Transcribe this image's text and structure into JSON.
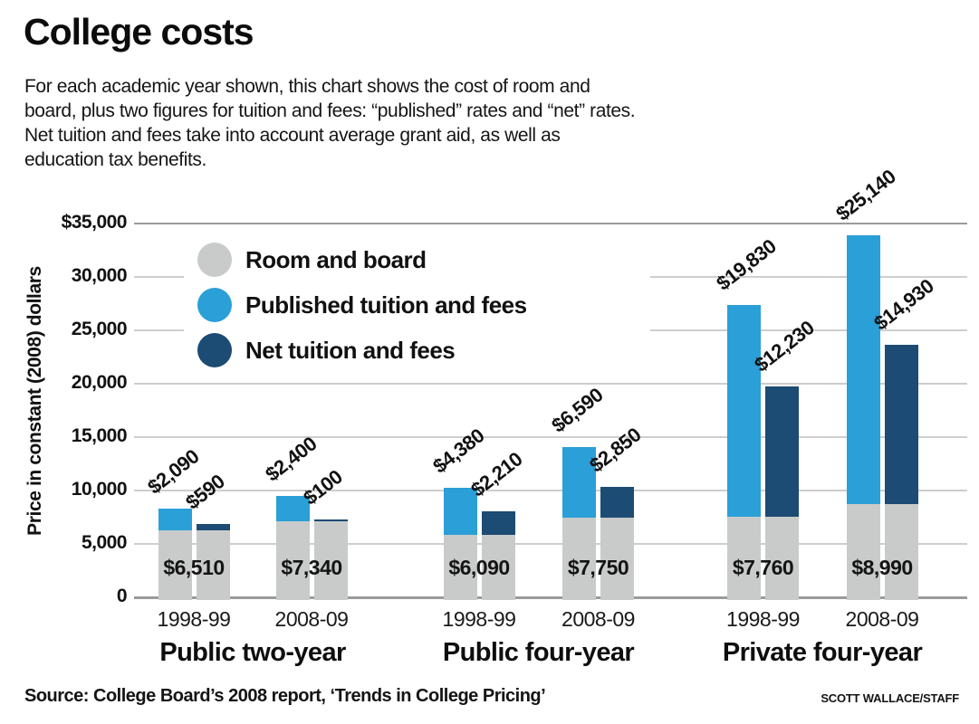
{
  "title": "College costs",
  "description": {
    "lines": [
      "For each academic year shown, this chart shows the cost of room and",
      "board, plus two figures for tuition and fees: “published” rates and “net” rates.",
      "Net tuition and fees take into account average grant aid, as well as",
      "education tax benefits."
    ]
  },
  "source": "Source: College Board’s 2008 report, ‘Trends in College Pricing’",
  "credit": "SCOTT WALLACE/STAFF",
  "colors": {
    "room_board": "#c9cbca",
    "published": "#2b9fd7",
    "net": "#1c4b73",
    "grid_light": "#cecece",
    "grid_dark": "#9b9b9b"
  },
  "chart_data": {
    "type": "bar",
    "stacked": true,
    "title": "College costs",
    "ylabel": "Price in constant (2008) dollars",
    "ylim": [
      0,
      35000
    ],
    "ytick_interval": 5000,
    "ytick_labels": [
      "$35,000",
      "30,000",
      "25,000",
      "20,000",
      "15,000",
      "10,000",
      "5,000",
      "0"
    ],
    "grid": true,
    "legend_position": "upper-left-inside",
    "legend": [
      {
        "label": "Room and board",
        "color": "#c9cbca"
      },
      {
        "label": "Published tuition and fees",
        "color": "#2b9fd7"
      },
      {
        "label": "Net tuition and fees",
        "color": "#1c4b73"
      }
    ],
    "groups": [
      {
        "label": "Public two-year",
        "years": [
          {
            "year": "1998-99",
            "room_board": 6510,
            "room_board_label": "$6,510",
            "published": 2090,
            "published_label": "$2,090",
            "net": 590,
            "net_label": "$590"
          },
          {
            "year": "2008-09",
            "room_board": 7340,
            "room_board_label": "$7,340",
            "published": 2400,
            "published_label": "$2,400",
            "net": 100,
            "net_label": "$100"
          }
        ]
      },
      {
        "label": "Public four-year",
        "years": [
          {
            "year": "1998-99",
            "room_board": 6090,
            "room_board_label": "$6,090",
            "published": 4380,
            "published_label": "$4,380",
            "net": 2210,
            "net_label": "$2,210"
          },
          {
            "year": "2008-09",
            "room_board": 7750,
            "room_board_label": "$7,750",
            "published": 6590,
            "published_label": "$6,590",
            "net": 2850,
            "net_label": "$2,850"
          }
        ]
      },
      {
        "label": "Private four-year",
        "years": [
          {
            "year": "1998-99",
            "room_board": 7760,
            "room_board_label": "$7,760",
            "published": 19830,
            "published_label": "$19,830",
            "net": 12230,
            "net_label": "$12,230"
          },
          {
            "year": "2008-09",
            "room_board": 8990,
            "room_board_label": "$8,990",
            "published": 25140,
            "published_label": "$25,140",
            "net": 14930,
            "net_label": "$14,930"
          }
        ]
      }
    ]
  }
}
